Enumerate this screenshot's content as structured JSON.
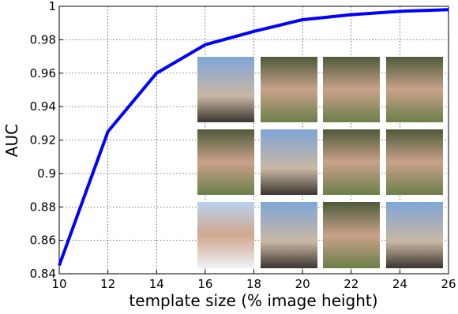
{
  "chart_data": {
    "type": "line",
    "x_label": "template size (% image height)",
    "y_label": "AUC",
    "x": [
      10,
      12,
      14,
      16,
      18,
      20,
      22,
      24,
      26
    ],
    "series": [
      {
        "name": "AUC",
        "color": "#0000ff",
        "values": [
          0.845,
          0.925,
          0.96,
          0.977,
          0.985,
          0.992,
          0.995,
          0.997,
          0.998
        ]
      }
    ],
    "xlim": [
      10,
      26
    ],
    "xticks": [
      10,
      12,
      14,
      16,
      18,
      20,
      22,
      24,
      26
    ],
    "ylim": [
      0.84,
      1
    ],
    "yticks": [
      0.84,
      0.86,
      0.88,
      0.9,
      0.92,
      0.94,
      0.96,
      0.98,
      1
    ],
    "grid": true
  }
}
